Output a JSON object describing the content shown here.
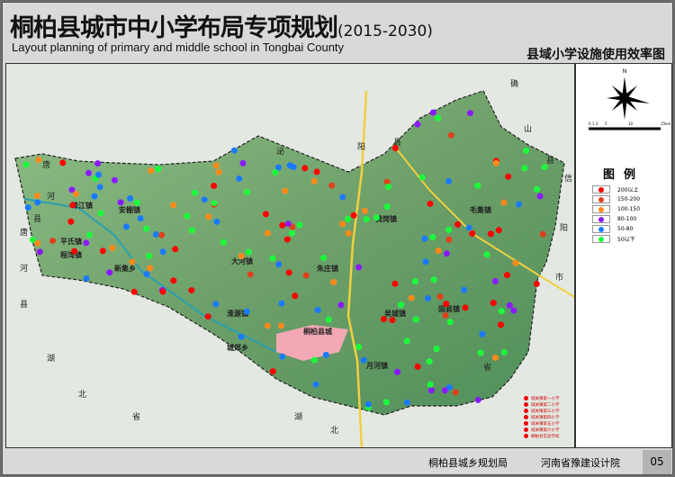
{
  "header": {
    "title": "桐柏县城市中小学布局专项规划",
    "years": "(2015-2030)",
    "subtitle": "Layout planning of primary and middle school in Tongbai County",
    "map_title": "县域小学设施使用效率图"
  },
  "map": {
    "neighbors": [
      {
        "text": "唐"
      },
      {
        "text": "河"
      },
      {
        "text": "县"
      },
      {
        "text": "泌"
      },
      {
        "text": "阳"
      },
      {
        "text": "县"
      },
      {
        "text": "确"
      },
      {
        "text": "山"
      },
      {
        "text": "县"
      },
      {
        "text": "信"
      },
      {
        "text": "阳"
      },
      {
        "text": "市"
      },
      {
        "text": "唐"
      },
      {
        "text": "河"
      },
      {
        "text": "县"
      },
      {
        "text": "湖"
      },
      {
        "text": "北"
      },
      {
        "text": "省"
      },
      {
        "text": "湖"
      },
      {
        "text": "北"
      },
      {
        "text": "省"
      }
    ],
    "towns": [
      "埠江镇",
      "安棚镇",
      "平氏镇",
      "程湾镇",
      "新集乡",
      "大河镇",
      "朱庄镇",
      "黄岗镇",
      "毛集镇",
      "淮源镇",
      "城郊乡",
      "桐柏县城",
      "吴城镇",
      "月河镇",
      "固县镇"
    ],
    "north_label": "N"
  },
  "legend": {
    "title": "图例",
    "items": [
      {
        "label": "200以上",
        "color": "#ff0000"
      },
      {
        "label": "150-200",
        "color": "#e0401a"
      },
      {
        "label": "100-150",
        "color": "#ff8a1a"
      },
      {
        "label": "80-100",
        "color": "#8a1aff"
      },
      {
        "label": "50-80",
        "color": "#1a7aff"
      },
      {
        "label": "50以下",
        "color": "#1aff3a"
      }
    ],
    "scale": [
      "0",
      "1",
      "2",
      "5",
      "10",
      "15km"
    ]
  },
  "school_list": [
    "城关镇第一小学",
    "城关镇第二小学",
    "城关镇第三小学",
    "城关镇第四小学",
    "城关镇第五小学",
    "城关镇第六小学",
    "桐柏县实验学校"
  ],
  "footer": {
    "org1": "桐柏县城乡规划局",
    "org2": "河南省豫建设计院",
    "page": "05"
  }
}
